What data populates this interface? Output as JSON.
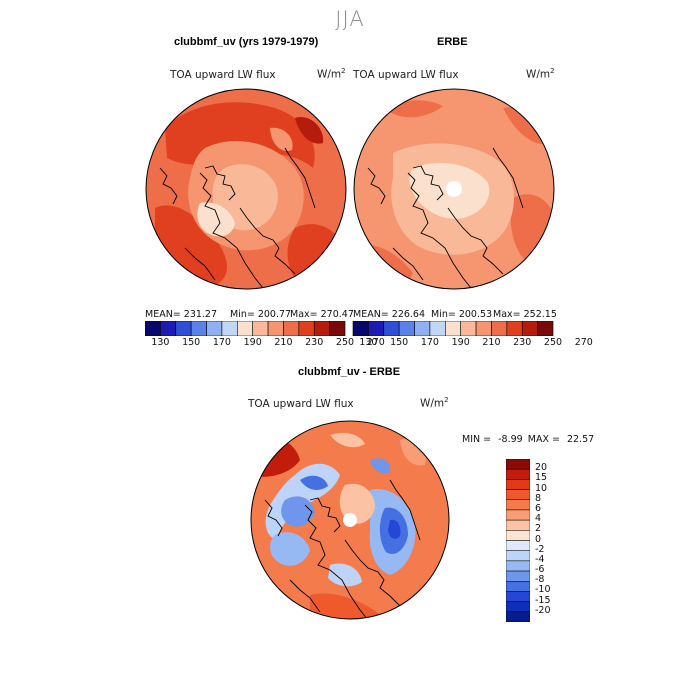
{
  "season": "JJA",
  "top_left": {
    "title": "clubbmf_uv (yrs 1979-1979)",
    "variable": "TOA upward LW flux",
    "units": "W/m",
    "units_exp": "2",
    "mean": "MEAN= 231.27",
    "min": "Min= 200.77",
    "max": "Max= 270.47"
  },
  "top_right": {
    "title": "ERBE",
    "variable": "TOA upward LW flux",
    "units": "W/m",
    "units_exp": "2",
    "mean": "MEAN= 226.64",
    "min": "Min= 200.53",
    "max": "Max= 252.15"
  },
  "abs_colorbar": {
    "ticks": [
      "130",
      "150",
      "170",
      "190",
      "210",
      "230",
      "250",
      "270"
    ],
    "colors": [
      "#08086b",
      "#1c1cb4",
      "#2f4fd6",
      "#5a83ea",
      "#8fb1f2",
      "#c2d6f6",
      "#fbe1cd",
      "#f9b999",
      "#f59670",
      "#ee6e4a",
      "#e0401f",
      "#b51c0c",
      "#7a0a06"
    ]
  },
  "diff": {
    "title": "clubbmf_uv - ERBE",
    "variable": "TOA upward LW flux",
    "units": "W/m",
    "units_exp": "2",
    "min_label": "MIN =",
    "min_value": "-8.99",
    "max_label": "MAX =",
    "max_value": "22.57",
    "colorbar_ticks": [
      "20",
      "15",
      "10",
      "8",
      "6",
      "4",
      "2",
      "0",
      "-2",
      "-4",
      "-6",
      "-8",
      "-10",
      "-15",
      "-20"
    ],
    "colorbar_colors": [
      "#8b0a06",
      "#c21c0c",
      "#e03a16",
      "#ee5a2c",
      "#f47b4c",
      "#f89d76",
      "#fbc2a3",
      "#fde3d1",
      "#dfe9fb",
      "#bdd3f8",
      "#96b8f3",
      "#6d96ec",
      "#4470e2",
      "#2447d6",
      "#102fb9",
      "#061d92"
    ]
  }
}
